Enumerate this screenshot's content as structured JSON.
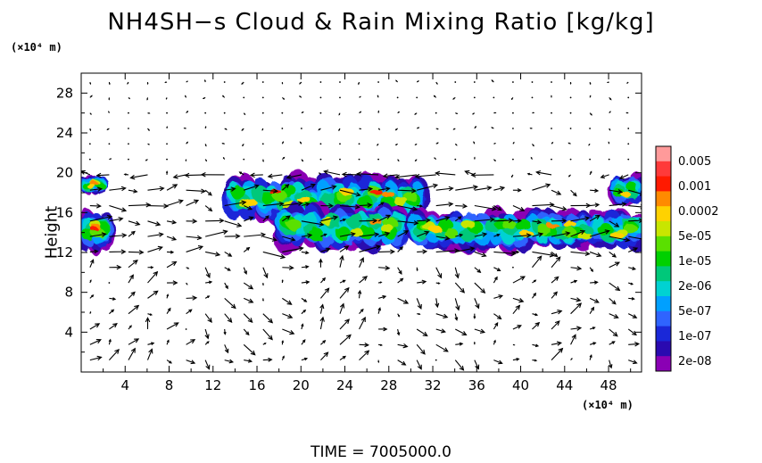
{
  "chart_data": {
    "type": "heatmap",
    "title": "NH4SH−s Cloud & Rain Mixing Ratio [kg/kg]",
    "ylabel": "Height",
    "y_unit": "(×10⁴ m)",
    "x_unit": "(×10⁴ m)",
    "time_label": "TIME  =  7005000.0",
    "xlim": [
      0,
      51
    ],
    "ylim": [
      0,
      30
    ],
    "x_ticks": [
      "4",
      "8",
      "12",
      "16",
      "20",
      "24",
      "28",
      "32",
      "36",
      "40",
      "44",
      "48"
    ],
    "y_ticks": [
      "4",
      "8",
      "12",
      "16",
      "20",
      "24",
      "28"
    ],
    "colorbar": {
      "labels": [
        "0.005",
        "0.001",
        "0.0002",
        "5e-05",
        "1e-05",
        "2e-06",
        "5e-07",
        "1e-07",
        "2e-08"
      ],
      "colors": [
        "#ff9a9a",
        "#ff3a3a",
        "#ff1a00",
        "#ff8a00",
        "#ffd200",
        "#c8e600",
        "#5ae000",
        "#00d000",
        "#00c87a",
        "#00d2d2",
        "#00a0ff",
        "#2f64ff",
        "#1a28d8",
        "#2a0ab0",
        "#8a00b4"
      ]
    },
    "cloud_layers": [
      {
        "x_range": [
          0,
          2.5
        ],
        "y_range": [
          12.5,
          16
        ]
      },
      {
        "x_range": [
          0,
          2.0
        ],
        "y_range": [
          18,
          19.5
        ]
      },
      {
        "x_range": [
          13.5,
          31
        ],
        "y_range": [
          15.5,
          19.5
        ]
      },
      {
        "x_range": [
          18,
          29.5
        ],
        "y_range": [
          12.5,
          16.5
        ]
      },
      {
        "x_range": [
          30,
          51
        ],
        "y_range": [
          12.5,
          16
        ]
      },
      {
        "x_range": [
          48.5,
          51
        ],
        "y_range": [
          17,
          19.5
        ]
      }
    ],
    "grid": false,
    "legend": "colorbar-right",
    "overlay": "wind vector field"
  }
}
